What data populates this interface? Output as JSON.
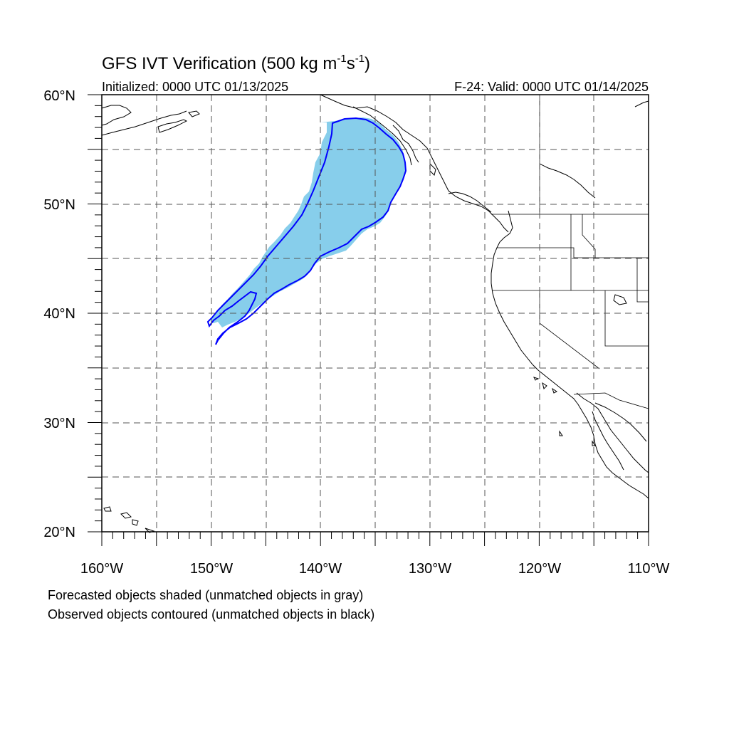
{
  "title": {
    "main": "GFS IVT Verification (500 kg m",
    "sup1": "-1",
    "mid": "s",
    "sup2": "-1",
    "end": ")"
  },
  "initialized": "Initialized: 0000 UTC 01/13/2025",
  "valid": "F-24: Valid: 0000 UTC 01/14/2025",
  "lat_labels": [
    "60°N",
    "50°N",
    "40°N",
    "30°N",
    "20°N"
  ],
  "lon_labels": [
    "160°W",
    "150°W",
    "140°W",
    "130°W",
    "120°W",
    "110°W"
  ],
  "notes": [
    "Forecasted objects shaded (unmatched objects in gray)",
    "Observed objects contoured (unmatched objects in black)"
  ],
  "map": {
    "lat_range": [
      20,
      60
    ],
    "lon_range": [
      -160,
      -110
    ],
    "grid_interval_deg": 5,
    "grid_style": "dashed",
    "forecast_fill_color": "#87ceeb",
    "observed_contour_color": "#0000ff",
    "coastline_color": "#000000"
  }
}
